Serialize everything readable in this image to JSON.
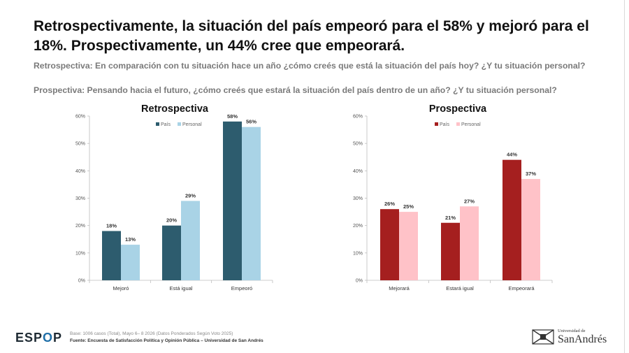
{
  "header": {
    "title": "Retrospectivamente, la situación del país empeoró para el 58% y mejoró para el 18%. Prospectivamente, un 44% cree que empeorará.",
    "question_retro": "Retrospectiva: En comparación con tu situación hace un año ¿cómo creés que está la situación del país hoy? ¿Y tu situación personal?",
    "question_prosp": "Prospectiva: Pensando hacia el futuro, ¿cómo creés que estará la situación del país dentro de un año? ¿Y tu situación personal?"
  },
  "chart_data": [
    {
      "type": "bar",
      "title": "Retrospectiva",
      "categories": [
        "Mejoró",
        "Está igual",
        "Empeoró"
      ],
      "series": [
        {
          "name": "País",
          "values": [
            18,
            20,
            58
          ],
          "color": "#2d5c6e"
        },
        {
          "name": "Personal",
          "values": [
            13,
            29,
            56
          ],
          "color": "#a9d3e6"
        }
      ],
      "data_labels": [
        [
          "18%",
          "20%",
          "58%"
        ],
        [
          "13%",
          "29%",
          "56%"
        ]
      ],
      "ylim": [
        0,
        60
      ],
      "yticks": [
        "0%",
        "10%",
        "20%",
        "30%",
        "40%",
        "50%",
        "60%"
      ],
      "legend_position": "top-center"
    },
    {
      "type": "bar",
      "title": "Prospectiva",
      "categories": [
        "Mejorará",
        "Estará igual",
        "Empeorará"
      ],
      "series": [
        {
          "name": "País",
          "values": [
            26,
            21,
            44
          ],
          "color": "#a51f1f"
        },
        {
          "name": "Personal",
          "values": [
            25,
            27,
            37
          ],
          "color": "#ffc2c8"
        }
      ],
      "data_labels": [
        [
          "26%",
          "21%",
          "44%"
        ],
        [
          "25%",
          "27%",
          "37%"
        ]
      ],
      "ylim": [
        0,
        60
      ],
      "yticks": [
        "0%",
        "10%",
        "20%",
        "30%",
        "40%",
        "50%",
        "60%"
      ],
      "legend_position": "top-center"
    }
  ],
  "footer": {
    "logo_main": "ESP",
    "logo_o": "O",
    "logo_end": "P",
    "base": "Base: 1006 casos (Total), Mayo 6– 8 2026 (Datos Ponderados Según Voto 2025)",
    "source": "Fuente: Encuesta de Satisfacción Política y Opinión Pública – Universidad de San Andrés",
    "university_small": "Universidad de",
    "university_name": "SanAndrés"
  }
}
